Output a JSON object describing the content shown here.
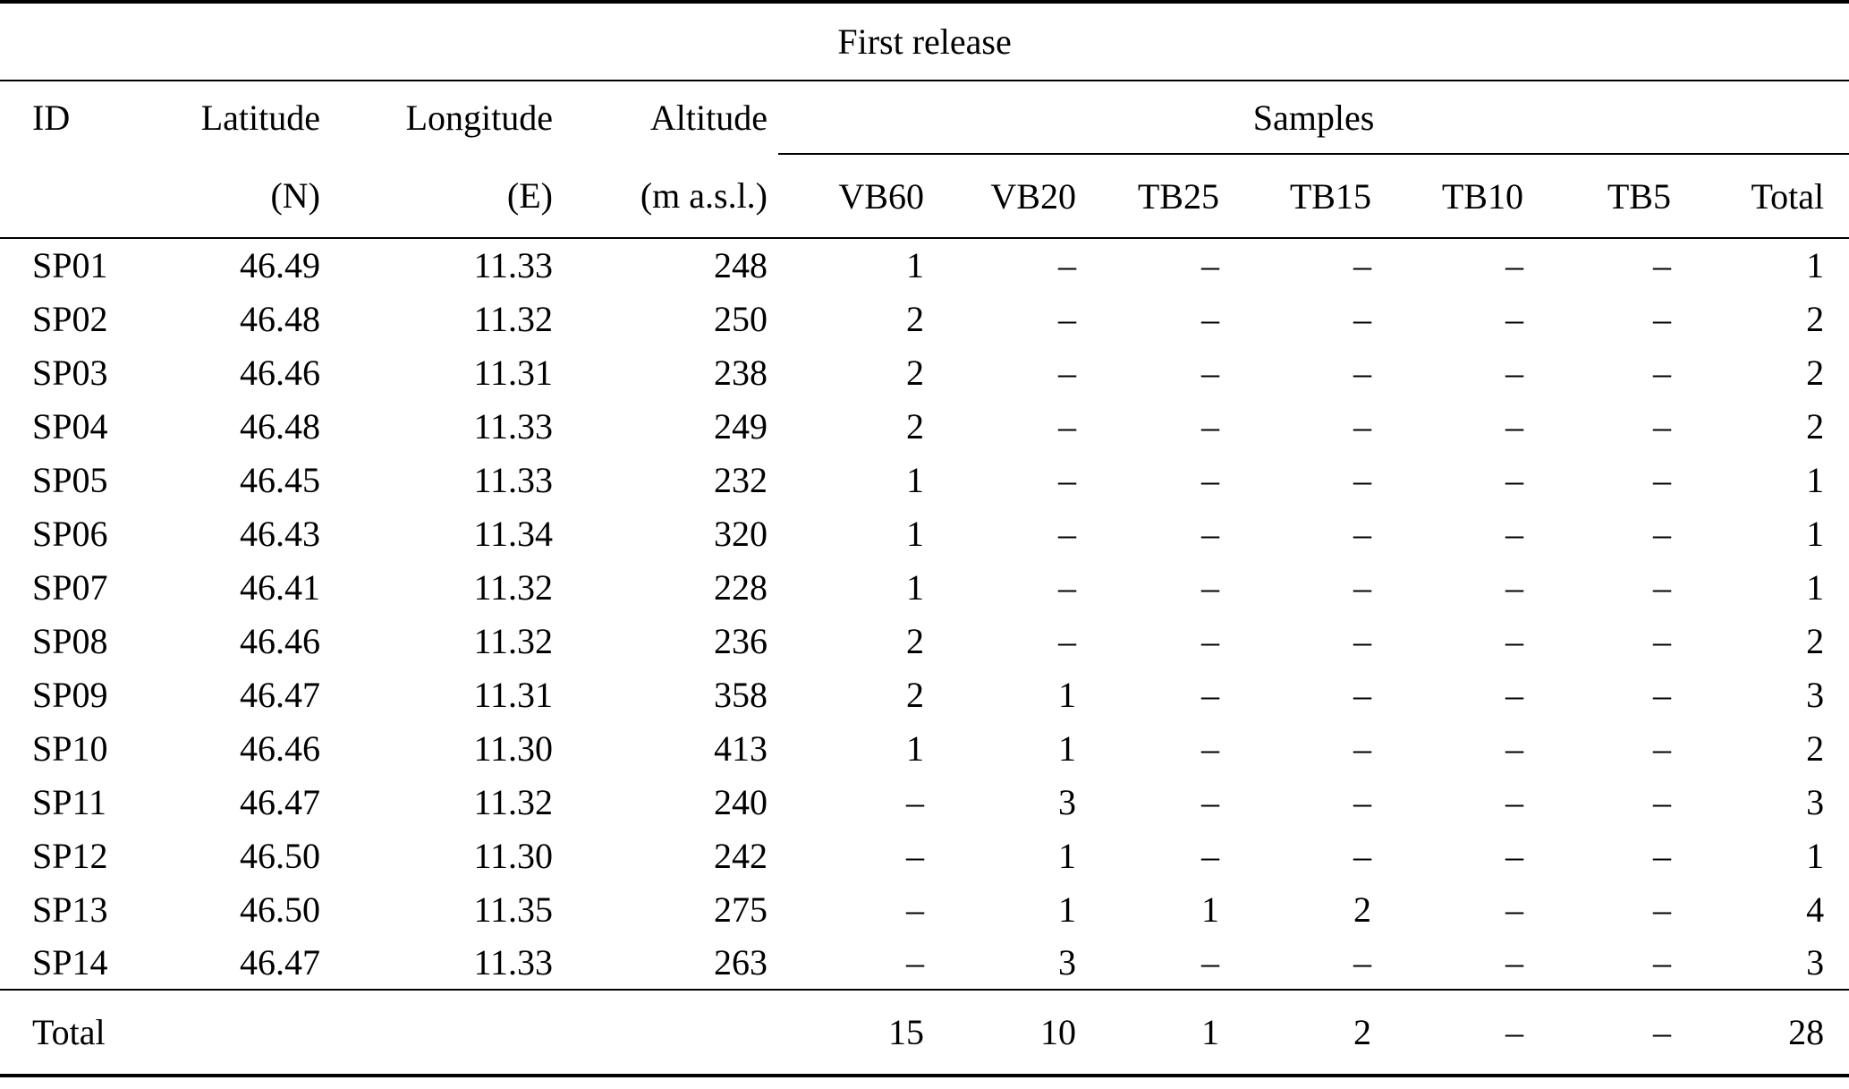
{
  "table": {
    "title": "First release",
    "header": {
      "id": "ID",
      "latitude": "Latitude",
      "latitude_unit": "(N)",
      "longitude": "Longitude",
      "longitude_unit": "(E)",
      "altitude": "Altitude",
      "altitude_unit": "(m a.s.l.)",
      "samples_group": "Samples",
      "sample_columns": [
        "VB60",
        "VB20",
        "TB25",
        "TB15",
        "TB10",
        "TB5",
        "Total"
      ]
    },
    "rows": [
      {
        "id": "SP01",
        "latitude": "46.49",
        "longitude": "11.33",
        "altitude": "248",
        "samples": [
          "1",
          "–",
          "–",
          "–",
          "–",
          "–",
          "1"
        ]
      },
      {
        "id": "SP02",
        "latitude": "46.48",
        "longitude": "11.32",
        "altitude": "250",
        "samples": [
          "2",
          "–",
          "–",
          "–",
          "–",
          "–",
          "2"
        ]
      },
      {
        "id": "SP03",
        "latitude": "46.46",
        "longitude": "11.31",
        "altitude": "238",
        "samples": [
          "2",
          "–",
          "–",
          "–",
          "–",
          "–",
          "2"
        ]
      },
      {
        "id": "SP04",
        "latitude": "46.48",
        "longitude": "11.33",
        "altitude": "249",
        "samples": [
          "2",
          "–",
          "–",
          "–",
          "–",
          "–",
          "2"
        ]
      },
      {
        "id": "SP05",
        "latitude": "46.45",
        "longitude": "11.33",
        "altitude": "232",
        "samples": [
          "1",
          "–",
          "–",
          "–",
          "–",
          "–",
          "1"
        ]
      },
      {
        "id": "SP06",
        "latitude": "46.43",
        "longitude": "11.34",
        "altitude": "320",
        "samples": [
          "1",
          "–",
          "–",
          "–",
          "–",
          "–",
          "1"
        ]
      },
      {
        "id": "SP07",
        "latitude": "46.41",
        "longitude": "11.32",
        "altitude": "228",
        "samples": [
          "1",
          "–",
          "–",
          "–",
          "–",
          "–",
          "1"
        ]
      },
      {
        "id": "SP08",
        "latitude": "46.46",
        "longitude": "11.32",
        "altitude": "236",
        "samples": [
          "2",
          "–",
          "–",
          "–",
          "–",
          "–",
          "2"
        ]
      },
      {
        "id": "SP09",
        "latitude": "46.47",
        "longitude": "11.31",
        "altitude": "358",
        "samples": [
          "2",
          "1",
          "–",
          "–",
          "–",
          "–",
          "3"
        ]
      },
      {
        "id": "SP10",
        "latitude": "46.46",
        "longitude": "11.30",
        "altitude": "413",
        "samples": [
          "1",
          "1",
          "–",
          "–",
          "–",
          "–",
          "2"
        ]
      },
      {
        "id": "SP11",
        "latitude": "46.47",
        "longitude": "11.32",
        "altitude": "240",
        "samples": [
          "–",
          "3",
          "–",
          "–",
          "–",
          "–",
          "3"
        ]
      },
      {
        "id": "SP12",
        "latitude": "46.50",
        "longitude": "11.30",
        "altitude": "242",
        "samples": [
          "–",
          "1",
          "–",
          "–",
          "–",
          "–",
          "1"
        ]
      },
      {
        "id": "SP13",
        "latitude": "46.50",
        "longitude": "11.35",
        "altitude": "275",
        "samples": [
          "–",
          "1",
          "1",
          "2",
          "–",
          "–",
          "4"
        ]
      },
      {
        "id": "SP14",
        "latitude": "46.47",
        "longitude": "11.33",
        "altitude": "263",
        "samples": [
          "–",
          "3",
          "–",
          "–",
          "–",
          "–",
          "3"
        ]
      }
    ],
    "total_row": {
      "label": "Total",
      "samples": [
        "15",
        "10",
        "1",
        "2",
        "–",
        "–",
        "28"
      ]
    }
  }
}
